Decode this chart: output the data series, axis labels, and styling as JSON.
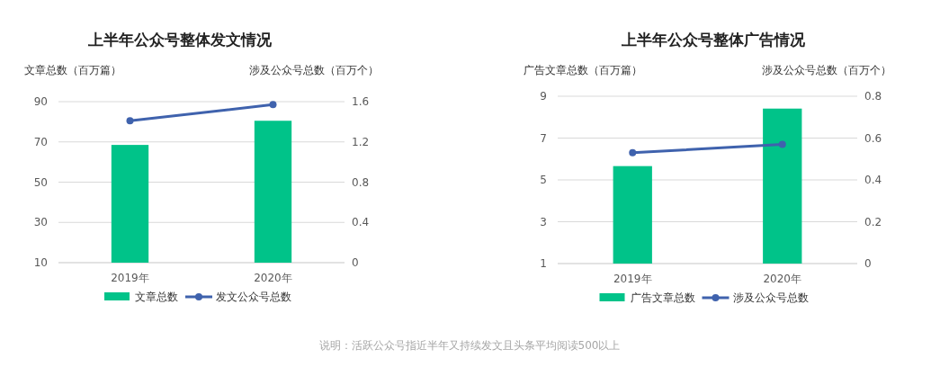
{
  "chart_data": [
    {
      "type": "bar",
      "title": "上半年公众号整体发文情况",
      "ylabel": "文章总数（百万篇）",
      "y2label": "涉及公众号总数（百万个）",
      "categories": [
        "2019年",
        "2020年"
      ],
      "series": [
        {
          "name": "文章总数",
          "color": "#00c389",
          "values": [
            68.5,
            80.5
          ]
        },
        {
          "name": "发文公众号总数",
          "type": "line",
          "axis": "y2",
          "color": "#3f62ad",
          "values": [
            1.41,
            1.57
          ]
        }
      ],
      "ylim": [
        10,
        90
      ],
      "yticks": [
        10,
        30,
        50,
        70,
        90
      ],
      "y2lim": [
        0,
        1.6
      ],
      "y2ticks": [
        0,
        0.4,
        0.8,
        1.2,
        1.6
      ],
      "grid": "y",
      "legend": "bottom",
      "marker": "circle"
    },
    {
      "type": "bar",
      "title": "上半年公众号整体广告情况",
      "ylabel": "广告文章总数（百万篇）",
      "y2label": "涉及公众号总数（百万个）",
      "categories": [
        "2019年",
        "2020年"
      ],
      "series": [
        {
          "name": "广告文章总数",
          "color": "#00c389",
          "values": [
            5.66,
            8.41
          ]
        },
        {
          "name": "涉及公众号总数",
          "type": "line",
          "axis": "y2",
          "color": "#3f62ad",
          "values": [
            0.53,
            0.57
          ]
        }
      ],
      "ylim": [
        1,
        9
      ],
      "yticks": [
        1,
        3,
        5,
        7,
        9
      ],
      "y2lim": [
        0,
        0.8
      ],
      "y2ticks": [
        0,
        0.2,
        0.4,
        0.6,
        0.8
      ],
      "grid": "y",
      "legend": "bottom",
      "marker": "circle",
      "annotations": [
        "说明：活跃公众号指近半年又持续发文且头条平均阅读500以上"
      ]
    }
  ]
}
